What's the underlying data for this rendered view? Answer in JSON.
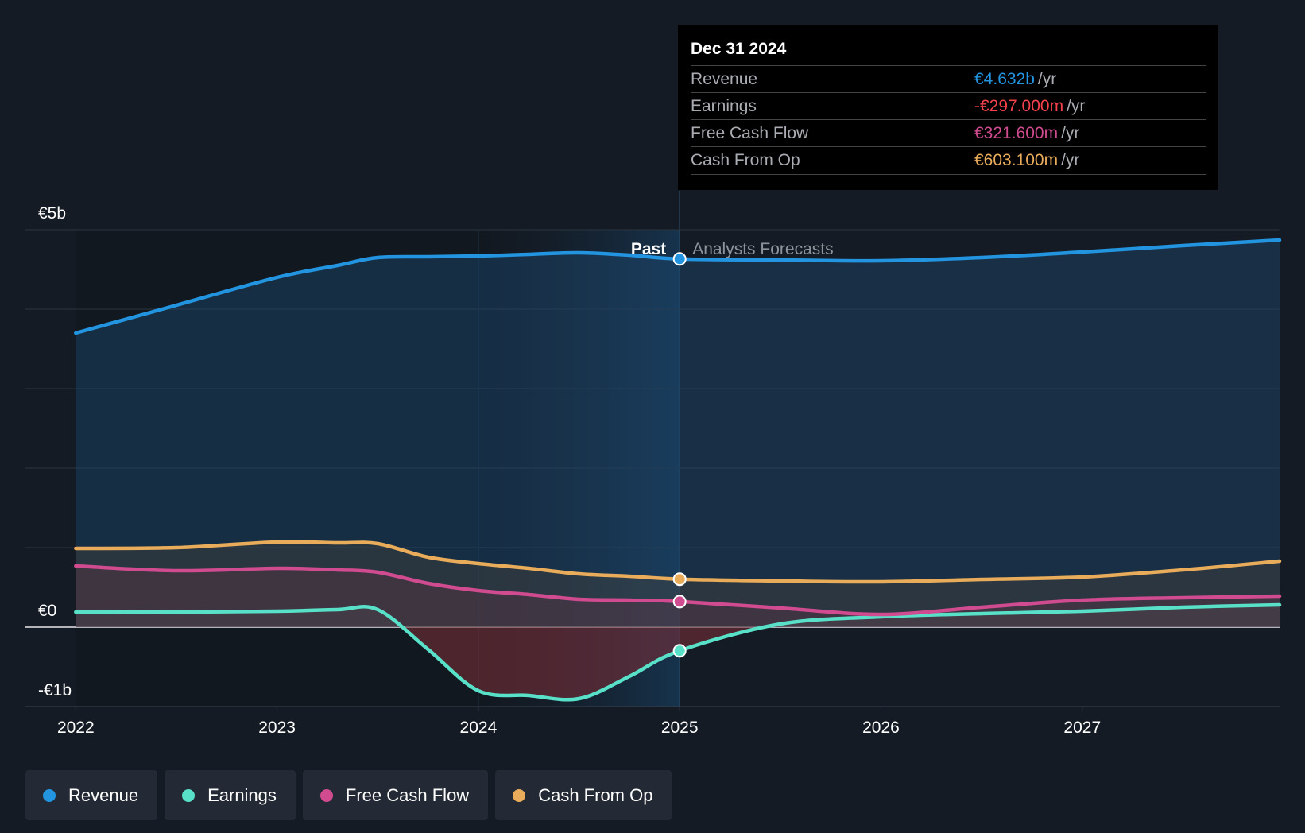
{
  "chart_data": {
    "type": "line",
    "title": "",
    "divider_label_past": "Past",
    "divider_label_forecast": "Analysts Forecasts",
    "divider_x": 2025.0,
    "past_highlight_start": 2024.0,
    "xlim": [
      2021.75,
      2027.98
    ],
    "ylim": [
      -1.0,
      5.0
    ],
    "x_ticks": [
      {
        "value": 2022,
        "label": "2022"
      },
      {
        "value": 2023,
        "label": "2023"
      },
      {
        "value": 2024,
        "label": "2024"
      },
      {
        "value": 2025,
        "label": "2025"
      },
      {
        "value": 2026,
        "label": "2026"
      },
      {
        "value": 2027,
        "label": "2027"
      }
    ],
    "y_ticks": [
      {
        "value": 5,
        "label": "€5b"
      },
      {
        "value": 0,
        "label": "€0"
      },
      {
        "value": -1,
        "label": "-€1b"
      }
    ],
    "unit": "€b",
    "series": [
      {
        "name": "Revenue",
        "key": "revenue",
        "color": "#2394df",
        "points": [
          [
            2022.0,
            3.7
          ],
          [
            2022.5,
            4.05
          ],
          [
            2023.0,
            4.4
          ],
          [
            2023.3,
            4.55
          ],
          [
            2023.5,
            4.65
          ],
          [
            2023.75,
            4.66
          ],
          [
            2024.0,
            4.67
          ],
          [
            2024.25,
            4.69
          ],
          [
            2024.5,
            4.71
          ],
          [
            2024.75,
            4.68
          ],
          [
            2025.0,
            4.632
          ],
          [
            2025.5,
            4.62
          ],
          [
            2026.0,
            4.61
          ],
          [
            2026.5,
            4.65
          ],
          [
            2027.0,
            4.72
          ],
          [
            2027.5,
            4.8
          ],
          [
            2027.98,
            4.87
          ]
        ]
      },
      {
        "name": "Earnings",
        "key": "earnings",
        "color": "#58e1c8",
        "points": [
          [
            2022.0,
            0.19
          ],
          [
            2022.5,
            0.19
          ],
          [
            2023.0,
            0.2
          ],
          [
            2023.3,
            0.22
          ],
          [
            2023.5,
            0.22
          ],
          [
            2023.75,
            -0.28
          ],
          [
            2024.0,
            -0.8
          ],
          [
            2024.25,
            -0.86
          ],
          [
            2024.5,
            -0.9
          ],
          [
            2024.75,
            -0.62
          ],
          [
            2025.0,
            -0.297
          ],
          [
            2025.5,
            0.04
          ],
          [
            2026.0,
            0.13
          ],
          [
            2026.5,
            0.17
          ],
          [
            2027.0,
            0.2
          ],
          [
            2027.5,
            0.25
          ],
          [
            2027.98,
            0.28
          ]
        ]
      },
      {
        "name": "Free Cash Flow",
        "key": "fcf",
        "color": "#d04b8f",
        "points": [
          [
            2022.0,
            0.77
          ],
          [
            2022.5,
            0.71
          ],
          [
            2023.0,
            0.74
          ],
          [
            2023.3,
            0.72
          ],
          [
            2023.5,
            0.69
          ],
          [
            2023.75,
            0.55
          ],
          [
            2024.0,
            0.46
          ],
          [
            2024.25,
            0.41
          ],
          [
            2024.5,
            0.35
          ],
          [
            2024.75,
            0.34
          ],
          [
            2025.0,
            0.3216
          ],
          [
            2025.5,
            0.24
          ],
          [
            2026.0,
            0.16
          ],
          [
            2026.5,
            0.25
          ],
          [
            2027.0,
            0.34
          ],
          [
            2027.5,
            0.37
          ],
          [
            2027.98,
            0.39
          ]
        ]
      },
      {
        "name": "Cash From Op",
        "key": "cfo",
        "color": "#e9ac5a",
        "points": [
          [
            2022.0,
            0.99
          ],
          [
            2022.5,
            1.0
          ],
          [
            2023.0,
            1.07
          ],
          [
            2023.3,
            1.06
          ],
          [
            2023.5,
            1.05
          ],
          [
            2023.75,
            0.88
          ],
          [
            2024.0,
            0.8
          ],
          [
            2024.25,
            0.74
          ],
          [
            2024.5,
            0.67
          ],
          [
            2024.75,
            0.64
          ],
          [
            2025.0,
            0.6031
          ],
          [
            2025.5,
            0.58
          ],
          [
            2026.0,
            0.57
          ],
          [
            2026.5,
            0.6
          ],
          [
            2027.0,
            0.63
          ],
          [
            2027.5,
            0.72
          ],
          [
            2027.98,
            0.83
          ]
        ]
      }
    ]
  },
  "tooltip": {
    "date": "Dec 31 2024",
    "rows": [
      {
        "label": "Revenue",
        "value": "€4.632b",
        "unit": "/yr",
        "color": "#2394df"
      },
      {
        "label": "Earnings",
        "value": "-€297.000m",
        "unit": "/yr",
        "color": "#f4424c"
      },
      {
        "label": "Free Cash Flow",
        "value": "€321.600m",
        "unit": "/yr",
        "color": "#d04b8f"
      },
      {
        "label": "Cash From Op",
        "value": "€603.100m",
        "unit": "/yr",
        "color": "#e9ac5a"
      }
    ]
  },
  "legend": [
    {
      "label": "Revenue",
      "color": "#2394df"
    },
    {
      "label": "Earnings",
      "color": "#58e1c8"
    },
    {
      "label": "Free Cash Flow",
      "color": "#d04b8f"
    },
    {
      "label": "Cash From Op",
      "color": "#e9ac5a"
    }
  ]
}
